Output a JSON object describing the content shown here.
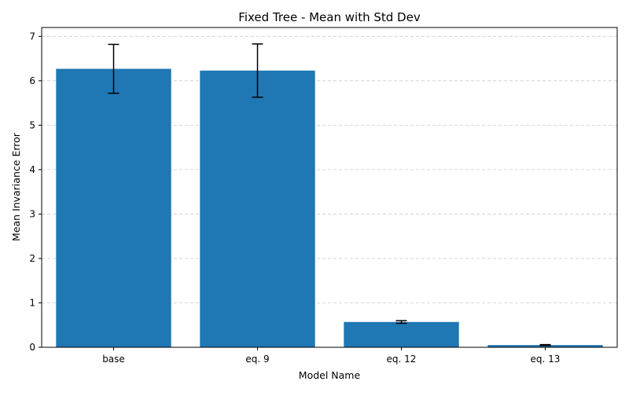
{
  "chart_data": {
    "type": "bar",
    "title": "Fixed Tree - Mean with Std Dev",
    "xlabel": "Model Name",
    "ylabel": "Mean Invariance Error",
    "categories": [
      "base",
      "eq. 9",
      "eq. 12",
      "eq. 13"
    ],
    "values": [
      6.27,
      6.23,
      0.57,
      0.05
    ],
    "errors": [
      0.55,
      0.6,
      0.03,
      0.01
    ],
    "ylim": [
      0,
      7.2
    ],
    "yticks": [
      0,
      1,
      2,
      3,
      4,
      5,
      6,
      7
    ],
    "grid": "y-dashed",
    "legend": "none",
    "colors": {
      "bar": "#1f77b4",
      "error_bar": "#000000",
      "grid": "#cccccc",
      "axis": "#000000"
    }
  }
}
